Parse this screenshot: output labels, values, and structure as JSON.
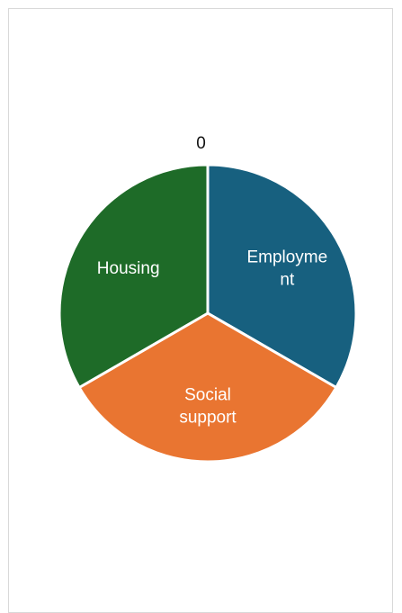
{
  "chart_data": {
    "type": "pie",
    "title": "0",
    "categories": [
      "Employment",
      "Social support",
      "Housing"
    ],
    "values": [
      1,
      1,
      1
    ],
    "label_lines": [
      [
        "Employme",
        "nt"
      ],
      [
        "Social",
        "support"
      ],
      [
        "Housing"
      ]
    ],
    "colors": [
      "#17607f",
      "#e97531",
      "#1e6b28"
    ],
    "start_angle_deg": 0,
    "direction": "clockwise",
    "slice_border_color": "#ffffff",
    "legend": "none"
  }
}
